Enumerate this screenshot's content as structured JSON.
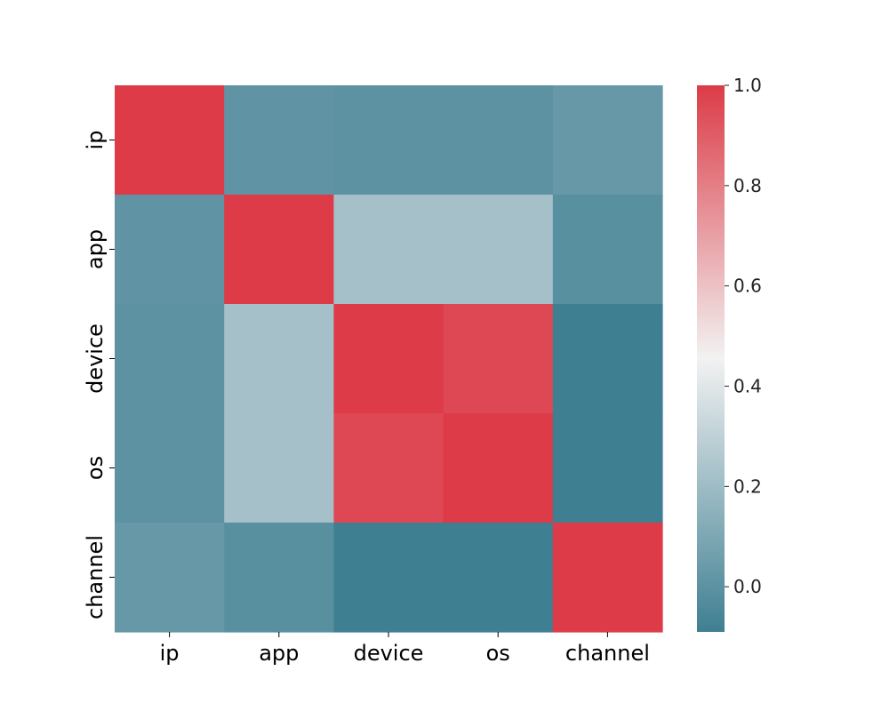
{
  "chart_data": {
    "type": "heatmap",
    "title": "",
    "xlabel": "",
    "ylabel": "",
    "categories_x": [
      "ip",
      "app",
      "device",
      "os",
      "channel"
    ],
    "categories_y": [
      "ip",
      "app",
      "device",
      "os",
      "channel"
    ],
    "values": [
      [
        1.0,
        0.01,
        0.0,
        0.0,
        0.03
      ],
      [
        0.01,
        1.0,
        0.22,
        0.22,
        -0.01
      ],
      [
        0.0,
        0.22,
        1.0,
        0.96,
        -0.09
      ],
      [
        0.0,
        0.22,
        0.96,
        1.0,
        -0.09
      ],
      [
        0.03,
        -0.01,
        -0.09,
        -0.09,
        1.0
      ]
    ],
    "colorbar": {
      "vmin": -0.09,
      "vmax": 1.0,
      "ticks": [
        0.0,
        0.2,
        0.4,
        0.6,
        0.8,
        1.0
      ],
      "tick_labels": [
        "0.0",
        "0.2",
        "0.4",
        "0.6",
        "0.8",
        "1.0"
      ],
      "colors": [
        "#3f7f92",
        "#f2f2f2",
        "#dc3b47"
      ]
    },
    "grid": false,
    "legend": "colorbar-right"
  }
}
